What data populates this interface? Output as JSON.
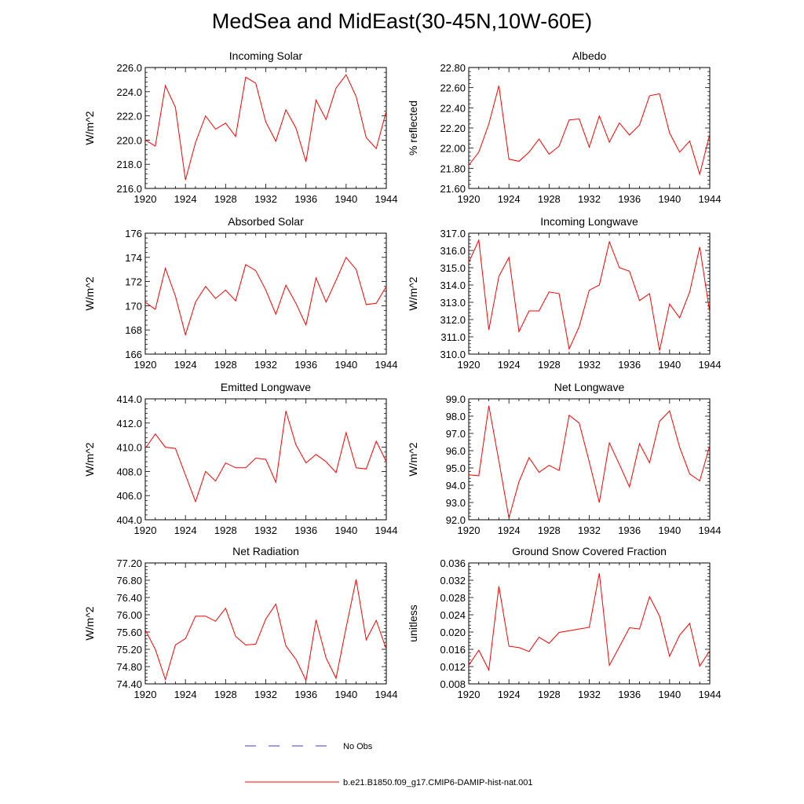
{
  "title": "MedSea and MidEast(30-45N,10W-60E)",
  "colors": {
    "model": "#ff0000",
    "obs": "#3b3bd6",
    "axis": "#000000"
  },
  "legend": [
    {
      "label": "No Obs",
      "style": "dashed",
      "color": "#3b3bd6"
    },
    {
      "label": "b.e21.B1850.f09_g17.CMIP6-DAMIP-hist-nat.001",
      "style": "solid",
      "color": "#ff0000"
    }
  ],
  "chart_data": [
    {
      "type": "line",
      "title": "Incoming Solar",
      "ylabel": "W/m^2",
      "x": [
        1920,
        1921,
        1922,
        1923,
        1924,
        1925,
        1926,
        1927,
        1928,
        1929,
        1930,
        1931,
        1932,
        1933,
        1934,
        1935,
        1936,
        1937,
        1938,
        1939,
        1940,
        1941,
        1942,
        1943,
        1944
      ],
      "series": [
        {
          "values": [
            220.0,
            219.5,
            224.5,
            222.7,
            216.7,
            219.8,
            222.0,
            220.9,
            221.4,
            220.3,
            225.2,
            224.7,
            221.5,
            219.9,
            222.5,
            221.0,
            218.2,
            223.3,
            221.7,
            224.3,
            225.4,
            223.6,
            220.2,
            219.3,
            222.4
          ]
        }
      ],
      "xlim": [
        1920,
        1944
      ],
      "ylim": [
        216.0,
        226.0
      ],
      "xticks": [
        "1920",
        "1924",
        "1928",
        "1932",
        "1936",
        "1940",
        "1944"
      ],
      "yticks": [
        "216.0",
        "218.0",
        "220.0",
        "222.0",
        "224.0",
        "226.0"
      ]
    },
    {
      "type": "line",
      "title": "Albedo",
      "ylabel": "% reflected",
      "x": [
        1920,
        1921,
        1922,
        1923,
        1924,
        1925,
        1926,
        1927,
        1928,
        1929,
        1930,
        1931,
        1932,
        1933,
        1934,
        1935,
        1936,
        1937,
        1938,
        1939,
        1940,
        1941,
        1942,
        1943,
        1944
      ],
      "series": [
        {
          "values": [
            21.83,
            21.96,
            22.24,
            22.62,
            21.89,
            21.87,
            21.96,
            22.09,
            21.94,
            22.02,
            22.28,
            22.29,
            22.01,
            22.32,
            22.06,
            22.25,
            22.13,
            22.23,
            22.52,
            22.54,
            22.15,
            21.96,
            22.07,
            21.74,
            22.14
          ]
        }
      ],
      "xlim": [
        1920,
        1944
      ],
      "ylim": [
        21.6,
        22.8
      ],
      "xticks": [
        "1920",
        "1924",
        "1928",
        "1932",
        "1936",
        "1940",
        "1944"
      ],
      "yticks": [
        "21.60",
        "21.80",
        "22.00",
        "22.20",
        "22.40",
        "22.60",
        "22.80"
      ]
    },
    {
      "type": "line",
      "title": "Absorbed Solar",
      "ylabel": "W/m^2",
      "x": [
        1920,
        1921,
        1922,
        1923,
        1924,
        1925,
        1926,
        1927,
        1928,
        1929,
        1930,
        1931,
        1932,
        1933,
        1934,
        1935,
        1936,
        1937,
        1938,
        1939,
        1940,
        1941,
        1942,
        1943,
        1944
      ],
      "series": [
        {
          "values": [
            170.3,
            169.7,
            173.1,
            170.8,
            167.6,
            170.3,
            171.6,
            170.6,
            171.3,
            170.4,
            173.4,
            172.9,
            171.3,
            169.3,
            171.7,
            170.2,
            168.4,
            172.3,
            170.3,
            172.1,
            174.0,
            173.0,
            170.1,
            170.2,
            171.6
          ]
        }
      ],
      "xlim": [
        1920,
        1944
      ],
      "ylim": [
        166,
        176
      ],
      "xticks": [
        "1920",
        "1924",
        "1928",
        "1932",
        "1936",
        "1940",
        "1944"
      ],
      "yticks": [
        "166",
        "168",
        "170",
        "172",
        "174",
        "176"
      ]
    },
    {
      "type": "line",
      "title": "Incoming Longwave",
      "ylabel": "W/m^2",
      "x": [
        1920,
        1921,
        1922,
        1923,
        1924,
        1925,
        1926,
        1927,
        1928,
        1929,
        1930,
        1931,
        1932,
        1933,
        1934,
        1935,
        1936,
        1937,
        1938,
        1939,
        1940,
        1941,
        1942,
        1943,
        1944
      ],
      "series": [
        {
          "values": [
            315.3,
            316.6,
            311.4,
            314.5,
            315.6,
            311.3,
            312.5,
            312.5,
            313.6,
            313.5,
            310.3,
            311.6,
            313.7,
            314.0,
            316.5,
            315.0,
            314.8,
            313.1,
            313.5,
            310.2,
            312.9,
            312.1,
            313.6,
            316.2,
            312.4
          ]
        }
      ],
      "xlim": [
        1920,
        1944
      ],
      "ylim": [
        310.0,
        317.0
      ],
      "xticks": [
        "1920",
        "1924",
        "1928",
        "1932",
        "1936",
        "1940",
        "1944"
      ],
      "yticks": [
        "310.0",
        "311.0",
        "312.0",
        "313.0",
        "314.0",
        "315.0",
        "316.0",
        "317.0"
      ]
    },
    {
      "type": "line",
      "title": "Emitted Longwave",
      "ylabel": "W/m^2",
      "x": [
        1920,
        1921,
        1922,
        1923,
        1924,
        1925,
        1926,
        1927,
        1928,
        1929,
        1930,
        1931,
        1932,
        1933,
        1934,
        1935,
        1936,
        1937,
        1938,
        1939,
        1940,
        1941,
        1942,
        1943,
        1944
      ],
      "series": [
        {
          "values": [
            409.9,
            411.1,
            410.0,
            409.9,
            407.7,
            405.5,
            408.0,
            407.2,
            408.7,
            408.3,
            408.3,
            409.1,
            409.0,
            407.1,
            413.0,
            410.2,
            408.7,
            409.4,
            408.8,
            407.9,
            411.2,
            408.3,
            408.2,
            410.5,
            408.8
          ]
        }
      ],
      "xlim": [
        1920,
        1944
      ],
      "ylim": [
        404.0,
        414.0
      ],
      "xticks": [
        "1920",
        "1924",
        "1928",
        "1932",
        "1936",
        "1940",
        "1944"
      ],
      "yticks": [
        "404.0",
        "406.0",
        "408.0",
        "410.0",
        "412.0",
        "414.0"
      ]
    },
    {
      "type": "line",
      "title": "Net Longwave",
      "ylabel": "W/m^2",
      "x": [
        1920,
        1921,
        1922,
        1923,
        1924,
        1925,
        1926,
        1927,
        1928,
        1929,
        1930,
        1931,
        1932,
        1933,
        1934,
        1935,
        1936,
        1937,
        1938,
        1939,
        1940,
        1941,
        1942,
        1943,
        1944
      ],
      "series": [
        {
          "values": [
            94.6,
            94.55,
            98.6,
            95.4,
            92.1,
            94.2,
            95.6,
            94.75,
            95.15,
            94.85,
            98.05,
            97.6,
            95.35,
            93.0,
            96.45,
            95.2,
            93.9,
            96.4,
            95.3,
            97.7,
            98.3,
            96.2,
            94.65,
            94.25,
            96.3
          ]
        }
      ],
      "xlim": [
        1920,
        1944
      ],
      "ylim": [
        92.0,
        99.0
      ],
      "xticks": [
        "1920",
        "1924",
        "1928",
        "1932",
        "1936",
        "1940",
        "1944"
      ],
      "yticks": [
        "92.0",
        "93.0",
        "94.0",
        "95.0",
        "96.0",
        "97.0",
        "98.0",
        "99.0"
      ]
    },
    {
      "type": "line",
      "title": "Net Radiation",
      "ylabel": "W/m^2",
      "x": [
        1920,
        1921,
        1922,
        1923,
        1924,
        1925,
        1926,
        1927,
        1928,
        1929,
        1930,
        1931,
        1932,
        1933,
        1934,
        1935,
        1936,
        1937,
        1938,
        1939,
        1940,
        1941,
        1942,
        1943,
        1944
      ],
      "series": [
        {
          "values": [
            75.65,
            75.2,
            74.5,
            75.3,
            75.45,
            75.97,
            75.97,
            75.85,
            76.15,
            75.5,
            75.3,
            75.32,
            75.9,
            76.25,
            75.28,
            74.97,
            74.48,
            75.88,
            75.0,
            74.53,
            75.7,
            76.82,
            75.42,
            75.87,
            75.2
          ]
        }
      ],
      "xlim": [
        1920,
        1944
      ],
      "ylim": [
        74.4,
        77.2
      ],
      "xticks": [
        "1920",
        "1924",
        "1928",
        "1932",
        "1936",
        "1940",
        "1944"
      ],
      "yticks": [
        "74.40",
        "74.80",
        "75.20",
        "75.60",
        "76.00",
        "76.40",
        "76.80",
        "77.20"
      ]
    },
    {
      "type": "line",
      "title": "Ground Snow Covered Fraction",
      "ylabel": "unitless",
      "x": [
        1920,
        1921,
        1922,
        1923,
        1924,
        1925,
        1926,
        1927,
        1928,
        1929,
        1930,
        1931,
        1932,
        1933,
        1934,
        1935,
        1936,
        1937,
        1938,
        1939,
        1940,
        1941,
        1942,
        1943,
        1944
      ],
      "series": [
        {
          "values": [
            0.0123,
            0.0158,
            0.0112,
            0.0306,
            0.0167,
            0.0164,
            0.0155,
            0.0188,
            0.0174,
            0.0199,
            0.0203,
            0.0207,
            0.0211,
            0.0336,
            0.0123,
            0.0166,
            0.021,
            0.0207,
            0.0282,
            0.0237,
            0.0144,
            0.0193,
            0.022,
            0.0121,
            0.0157
          ]
        }
      ],
      "xlim": [
        1920,
        1944
      ],
      "ylim": [
        0.008,
        0.036
      ],
      "xticks": [
        "1920",
        "1924",
        "1928",
        "1932",
        "1936",
        "1940",
        "1944"
      ],
      "yticks": [
        "0.008",
        "0.012",
        "0.016",
        "0.020",
        "0.024",
        "0.028",
        "0.032",
        "0.036"
      ]
    }
  ]
}
